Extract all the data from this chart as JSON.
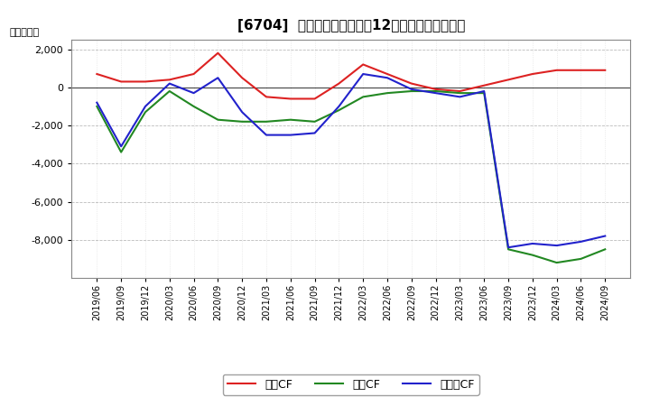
{
  "title": "[6704]  キャッシュフローの12か月移動合計の推移",
  "ylabel": "（百万円）",
  "background_color": "#ffffff",
  "grid_major_color": "#bbbbbb",
  "grid_minor_color": "#dddddd",
  "x_labels": [
    "2019/06",
    "2019/09",
    "2019/12",
    "2020/03",
    "2020/06",
    "2020/09",
    "2020/12",
    "2021/03",
    "2021/06",
    "2021/09",
    "2021/12",
    "2022/03",
    "2022/06",
    "2022/09",
    "2022/12",
    "2023/03",
    "2023/06",
    "2023/09",
    "2023/12",
    "2024/03",
    "2024/06",
    "2024/09"
  ],
  "operating_cf": [
    700,
    300,
    300,
    400,
    700,
    1800,
    500,
    -500,
    -600,
    -600,
    200,
    1200,
    700,
    200,
    -100,
    -200,
    100,
    400,
    700,
    900,
    900,
    900
  ],
  "investing_cf": [
    -1000,
    -3400,
    -1300,
    -200,
    -1000,
    -1700,
    -1800,
    -1800,
    -1700,
    -1800,
    -1200,
    -500,
    -300,
    -200,
    -200,
    -300,
    -300,
    -8500,
    -8800,
    -9200,
    -9000,
    -8500
  ],
  "free_cf": [
    -800,
    -3100,
    -1000,
    200,
    -300,
    500,
    -1300,
    -2500,
    -2500,
    -2400,
    -1000,
    700,
    500,
    -100,
    -300,
    -500,
    -200,
    -8400,
    -8200,
    -8300,
    -8100,
    -7800
  ],
  "ylim": [
    -10000,
    2500
  ],
  "yticks": [
    2000,
    0,
    -2000,
    -4000,
    -6000,
    -8000
  ],
  "line_colors": {
    "operating": "#dd2222",
    "investing": "#228822",
    "free": "#2222cc"
  },
  "legend_labels": [
    "営業CF",
    "投資CF",
    "フリーCF"
  ]
}
